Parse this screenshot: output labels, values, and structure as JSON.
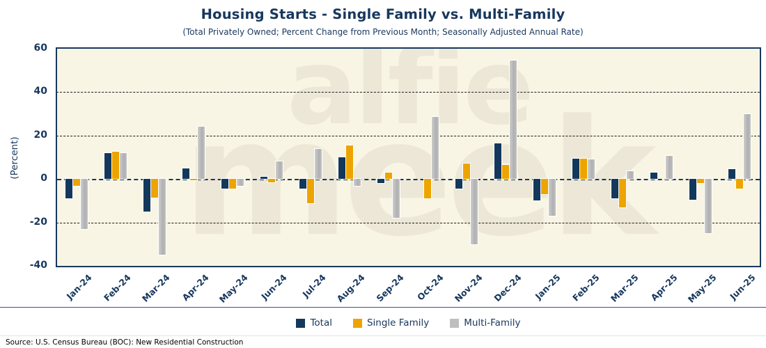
{
  "title": "Housing Starts - Single Family vs. Multi-Family",
  "subtitle": "(Total Privately Owned; Percent Change from Previous Month; Seasonally Adjusted Annual Rate)",
  "source": "Source: U.S. Census Bureau (BOC): New Residential Construction",
  "watermark": {
    "line1": "alfie",
    "line2": "meek"
  },
  "colors": {
    "navy": "#17375E",
    "total_bar": "#14385C",
    "single_family_bar": "#EDA400",
    "multi_family_bar": "#BEBEBE",
    "plot_background": "#F9F5E4",
    "watermark_text": "#ECE7D6"
  },
  "chart_data": {
    "type": "bar",
    "title": "Housing Starts - Single Family vs. Multi-Family",
    "subtitle": "(Total Privately Owned; Percent Change from Previous Month; Seasonally Adjusted Annual Rate)",
    "xlabel": "",
    "ylabel": "(Percent)",
    "ylim": [
      -40,
      60
    ],
    "yticks": [
      60,
      40,
      20,
      0,
      -20,
      -40
    ],
    "gridlines": [
      40,
      20,
      -20
    ],
    "grid": "dashed",
    "legend_position": "bottom",
    "categories": [
      "Jan-24",
      "Feb-24",
      "Mar-24",
      "Apr-24",
      "May-24",
      "Jun-24",
      "Jul-24",
      "Aug-24",
      "Sep-24",
      "Oct-24",
      "Nov-24",
      "Dec-24",
      "Jan-25",
      "Feb-25",
      "Mar-25",
      "Apr-25",
      "May-25",
      "Jun-25"
    ],
    "series": [
      {
        "name": "Total",
        "color": "#14385C",
        "values": [
          -9,
          12,
          -15,
          5,
          -4.5,
          1,
          -4.5,
          10,
          -2,
          0,
          -4.5,
          16.5,
          -10,
          9.5,
          -9,
          3,
          -9.5,
          4.5
        ]
      },
      {
        "name": "Single Family",
        "color": "#EDA400",
        "values": [
          -3,
          12.5,
          -8.5,
          -0.5,
          -4.5,
          -1.5,
          -11,
          15.5,
          3,
          -9,
          7,
          6.5,
          -7,
          9.5,
          -13,
          0,
          -2,
          -4.5
        ]
      },
      {
        "name": "Multi-Family",
        "color": "#BEBEBE",
        "values": [
          -23,
          12,
          -35,
          24,
          -3,
          8,
          14,
          -3,
          -18,
          28.5,
          -30,
          54.5,
          -17,
          9,
          3.5,
          10.5,
          -25,
          30
        ]
      }
    ]
  }
}
